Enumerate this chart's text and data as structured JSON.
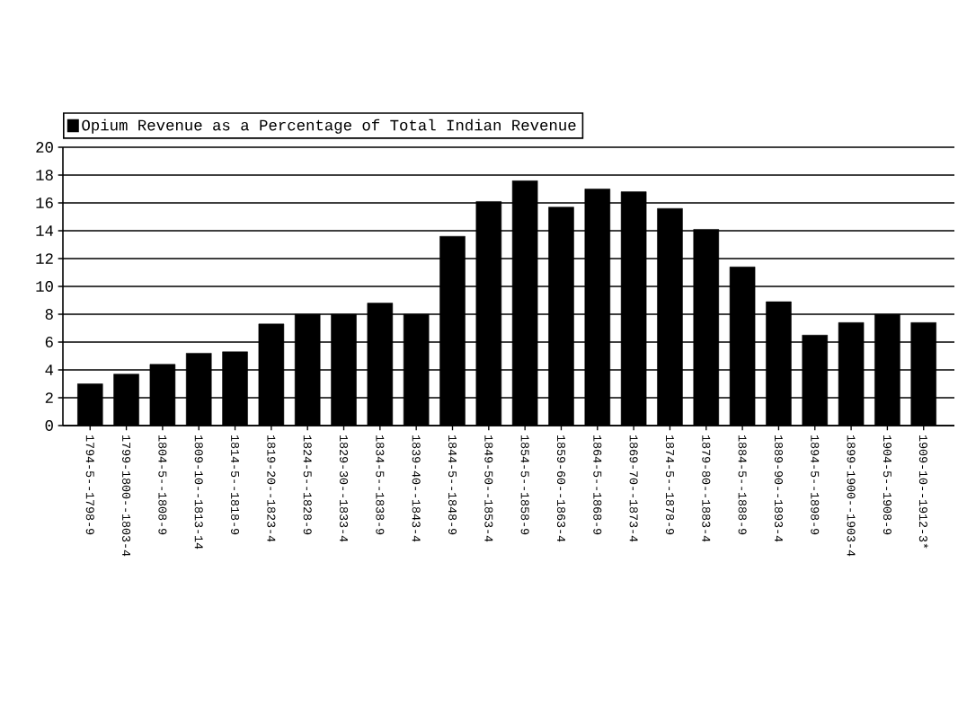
{
  "chart_data": {
    "type": "bar",
    "categories": [
      "1794-5--1798-9",
      "1799-1800--1803-4",
      "1804-5--1808-9",
      "1809-10--1813-14",
      "1814-5--1818-9",
      "1819-20--1823-4",
      "1824-5--1828-9",
      "1829-30--1833-4",
      "1834-5--1838-9",
      "1839-40--1843-4",
      "1844-5--1848-9",
      "1849-50--1853-4",
      "1854-5--1858-9",
      "1859-60--1863-4",
      "1864-5--1868-9",
      "1869-70--1873-4",
      "1874-5--1878-9",
      "1879-80--1883-4",
      "1884-5--1888-9",
      "1889-90--1893-4",
      "1894-5--1898-9",
      "1899-1900--1903-4",
      "1904-5--1908-9",
      "1909-10--1912-3*"
    ],
    "series": [
      {
        "name": "Opium Revenue as a Percentage of Total Indian Revenue",
        "color": "#000000",
        "values": [
          3.0,
          3.7,
          4.4,
          5.2,
          5.3,
          7.3,
          8.0,
          8.0,
          8.8,
          8.0,
          13.6,
          16.1,
          17.6,
          15.7,
          17.0,
          16.8,
          15.6,
          14.1,
          11.4,
          8.9,
          6.5,
          7.4,
          8.0,
          7.4
        ]
      }
    ],
    "ylim": [
      0,
      20
    ],
    "yticks": [
      0,
      2,
      4,
      6,
      8,
      10,
      12,
      14,
      16,
      18,
      20
    ],
    "grid": "y",
    "legend": "top left"
  }
}
